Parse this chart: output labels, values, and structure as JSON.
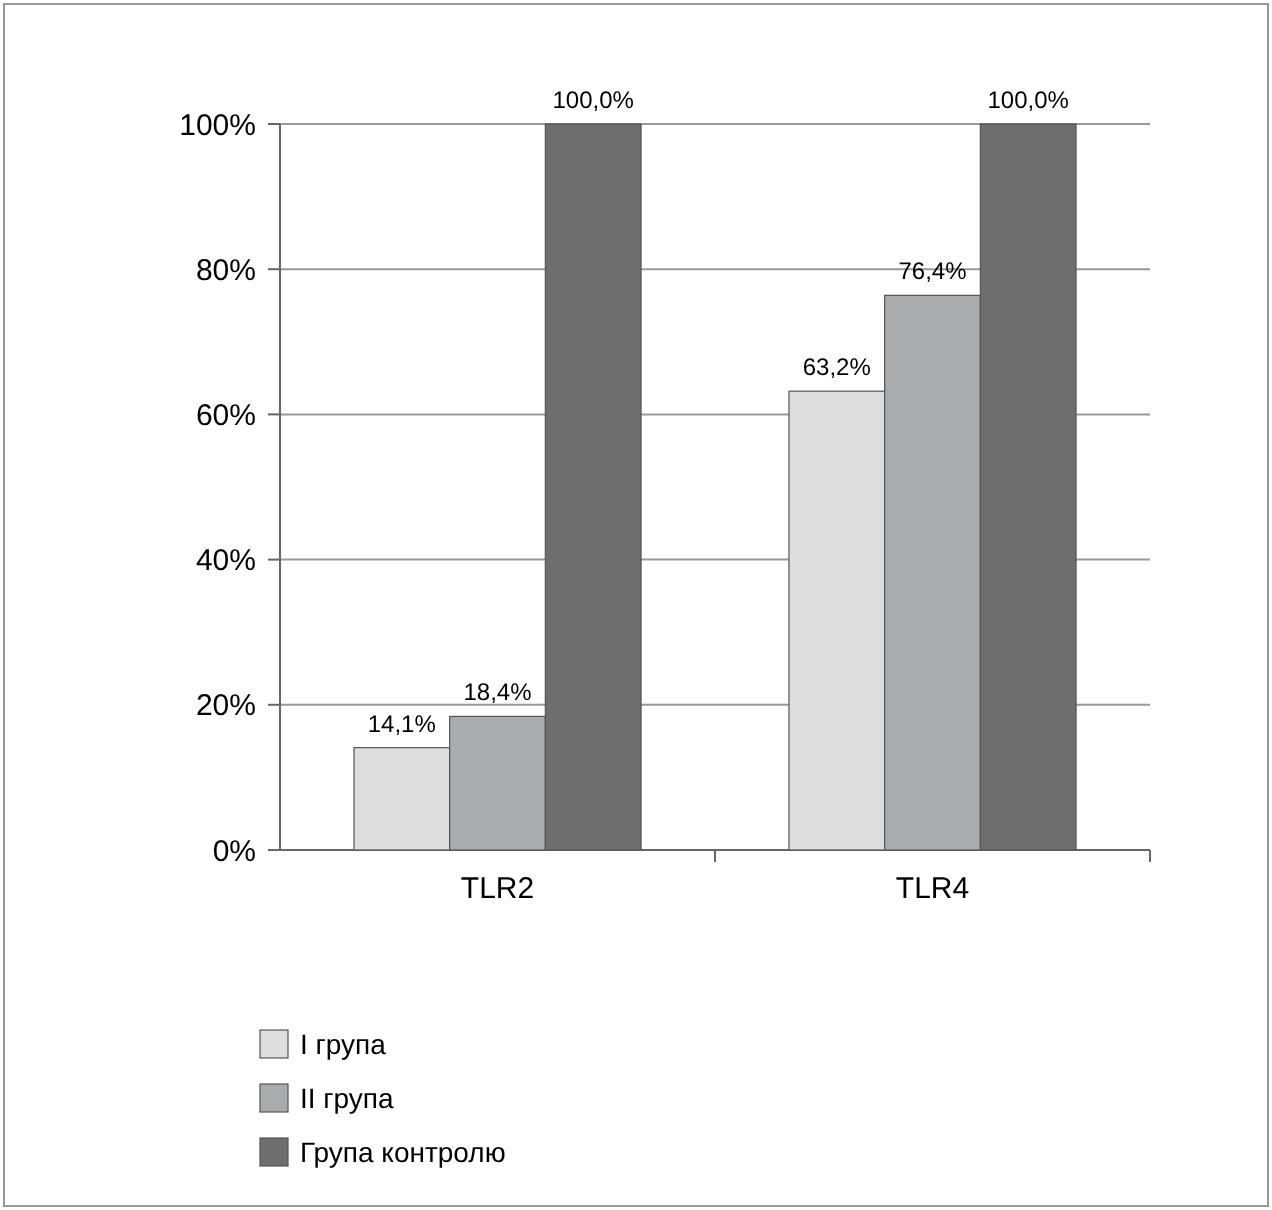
{
  "chart_data": {
    "type": "bar",
    "categories": [
      "TLR2",
      "TLR4"
    ],
    "series": [
      {
        "name": "I група",
        "color": "#dcdddf",
        "values": [
          14.1,
          63.2
        ],
        "value_labels": [
          "14,1%",
          "63,2%"
        ]
      },
      {
        "name": "II група",
        "color": "#a9acaf",
        "values": [
          18.4,
          76.4
        ],
        "value_labels": [
          "18,4%",
          "76,4%"
        ]
      },
      {
        "name": "Група контролю",
        "color": "#6e6e6e",
        "values": [
          100,
          100
        ],
        "value_labels": [
          "100,0%",
          "100,0%"
        ]
      }
    ],
    "ylim": [
      0,
      100
    ],
    "yticks": [
      {
        "value": 0,
        "label": "0%"
      },
      {
        "value": 20,
        "label": "20%"
      },
      {
        "value": 40,
        "label": "40%"
      },
      {
        "value": 60,
        "label": "60%"
      },
      {
        "value": 80,
        "label": "80%"
      },
      {
        "value": 100,
        "label": "100%"
      }
    ],
    "grid": "y",
    "legend": "bottom left"
  }
}
